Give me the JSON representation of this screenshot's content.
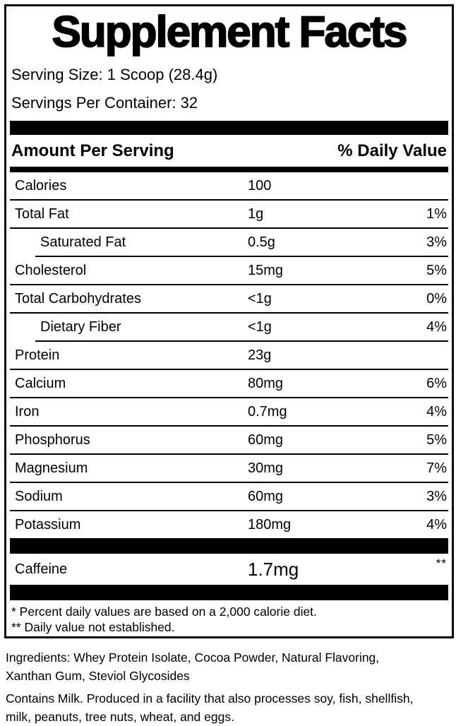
{
  "label": {
    "title": "Supplement Facts",
    "serving_size": "Serving Size: 1 Scoop (28.4g)",
    "servings_per_container": "Servings Per Container: 32",
    "header": {
      "amount_per_serving": "Amount Per Serving",
      "daily_value": "% Daily Value"
    },
    "rows": [
      {
        "name": "Calories",
        "amount": "100",
        "pct": "",
        "indent": false,
        "sep": "none"
      },
      {
        "name": "Total Fat",
        "amount": "1g",
        "pct": "1%",
        "indent": false,
        "sep": "full"
      },
      {
        "name": "Saturated Fat",
        "amount": "0.5g",
        "pct": "3%",
        "indent": true,
        "sep": "full"
      },
      {
        "name": "Cholesterol",
        "amount": "15mg",
        "pct": "5%",
        "indent": false,
        "sep": "indent"
      },
      {
        "name": "Total Carbohydrates",
        "amount": "<1g",
        "pct": "0%",
        "indent": false,
        "sep": "full"
      },
      {
        "name": "Dietary Fiber",
        "amount": "<1g",
        "pct": "4%",
        "indent": true,
        "sep": "full"
      },
      {
        "name": "Protein",
        "amount": "23g",
        "pct": "",
        "indent": false,
        "sep": "indent"
      },
      {
        "name": "Calcium",
        "amount": "80mg",
        "pct": "6%",
        "indent": false,
        "sep": "full"
      },
      {
        "name": "Iron",
        "amount": "0.7mg",
        "pct": "4%",
        "indent": false,
        "sep": "full"
      },
      {
        "name": "Phosphorus",
        "amount": "60mg",
        "pct": "5%",
        "indent": false,
        "sep": "full"
      },
      {
        "name": "Magnesium",
        "amount": "30mg",
        "pct": "7%",
        "indent": false,
        "sep": "full"
      },
      {
        "name": "Sodium",
        "amount": "60mg",
        "pct": "3%",
        "indent": false,
        "sep": "full"
      },
      {
        "name": "Potassium",
        "amount": "180mg",
        "pct": "4%",
        "indent": false,
        "sep": "full"
      }
    ],
    "caffeine": {
      "name": "Caffeine",
      "amount": "1.7mg",
      "pct": "**"
    },
    "footnotes": {
      "line1": "* Percent daily values are based on a 2,000 calorie diet.",
      "line2": "** Daily value not established."
    }
  },
  "ingredients": {
    "line1": "Ingredients: Whey Protein Isolate, Cocoa Powder, Natural Flavoring,",
    "line2": "Xanthan Gum, Steviol Glycosides"
  },
  "allergen": {
    "line1": "Contains Milk. Produced in a facility that also processes soy, fish, shellfish,",
    "line2": "milk, peanuts, tree nuts, wheat, and eggs."
  },
  "colors": {
    "text": "#000000",
    "background": "#ffffff",
    "rule": "#000000"
  }
}
